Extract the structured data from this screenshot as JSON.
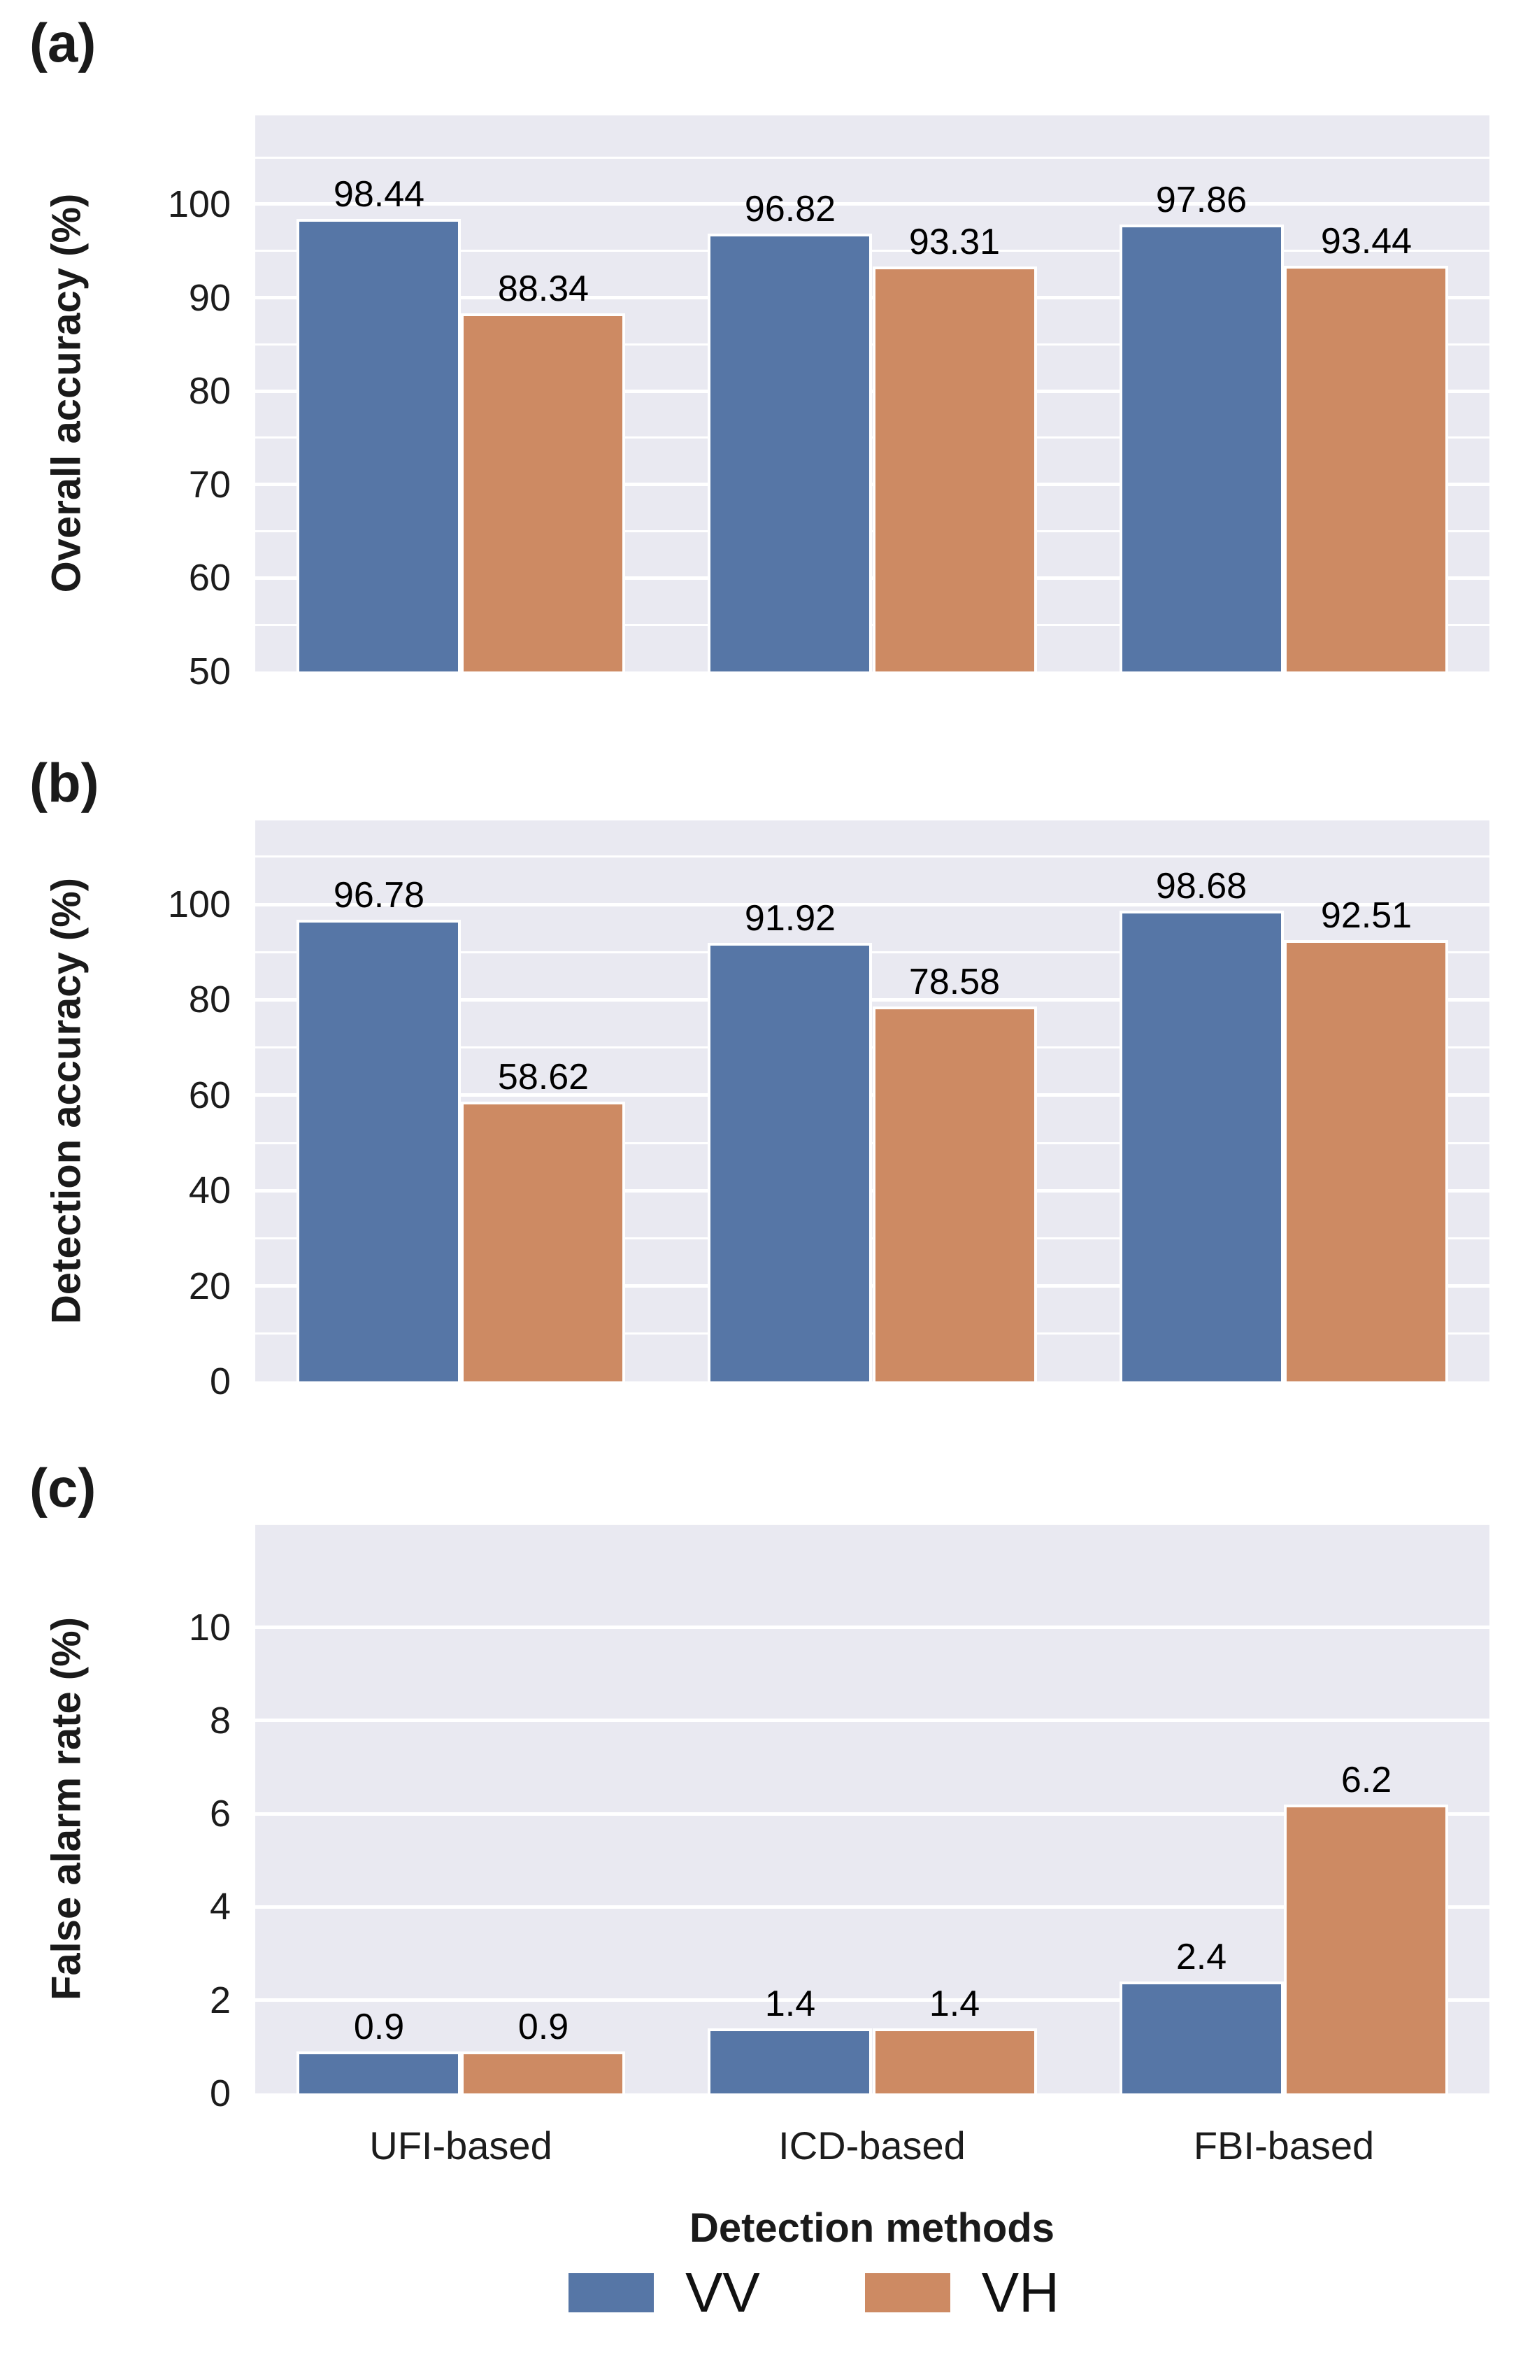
{
  "figure": {
    "panels": [
      {
        "letter": "(a)",
        "ylabel": "Overall accuracy (%)"
      },
      {
        "letter": "(b)",
        "ylabel": "Detection accuracy (%)"
      },
      {
        "letter": "(c)",
        "ylabel": "False alarm rate (%)"
      }
    ],
    "xlabel": "Detection methods",
    "legend": [
      {
        "label": "VV",
        "color": "#5676a6"
      },
      {
        "label": "VH",
        "color": "#cd8a63"
      }
    ]
  },
  "colors": {
    "bar_blue": "#5676a6",
    "bar_orange": "#cd8a63",
    "plot_background": "#e9e9f1",
    "gridline": "#ffffff",
    "text": "#1a1a1a"
  },
  "chart_data": [
    {
      "type": "bar",
      "panel": "(a)",
      "categories": [
        "UFI-based",
        "ICD-based",
        "FBI-based"
      ],
      "series": [
        {
          "name": "VV",
          "values": [
            98.44,
            96.82,
            97.86
          ],
          "labels": [
            "98.44",
            "96.82",
            "97.86"
          ],
          "color": "#5676a6"
        },
        {
          "name": "VH",
          "values": [
            88.34,
            93.31,
            93.44
          ],
          "labels": [
            "88.34",
            "93.31",
            "93.44"
          ],
          "color": "#cd8a63"
        }
      ],
      "title": "",
      "xlabel": "Detection methods",
      "ylabel": "Overall accuracy (%)",
      "ylim": [
        50,
        109.5
      ],
      "yticks": [
        50,
        60,
        70,
        80,
        90,
        100
      ],
      "grid_step": 5,
      "grid": true,
      "legend_position": "bottom-center"
    },
    {
      "type": "bar",
      "panel": "(b)",
      "categories": [
        "UFI-based",
        "ICD-based",
        "FBI-based"
      ],
      "series": [
        {
          "name": "VV",
          "values": [
            96.78,
            91.92,
            98.68
          ],
          "labels": [
            "96.78",
            "91.92",
            "98.68"
          ],
          "color": "#5676a6"
        },
        {
          "name": "VH",
          "values": [
            58.62,
            78.58,
            92.51
          ],
          "labels": [
            "58.62",
            "78.58",
            "92.51"
          ],
          "color": "#cd8a63"
        }
      ],
      "title": "",
      "xlabel": "Detection methods",
      "ylabel": "Detection accuracy (%)",
      "ylim": [
        0,
        117.6
      ],
      "yticks": [
        0,
        20,
        40,
        60,
        80,
        100
      ],
      "grid_step": 10,
      "grid": true,
      "legend_position": "bottom-center"
    },
    {
      "type": "bar",
      "panel": "(c)",
      "categories": [
        "UFI-based",
        "ICD-based",
        "FBI-based"
      ],
      "series": [
        {
          "name": "VV",
          "values": [
            0.9,
            1.4,
            2.4
          ],
          "labels": [
            "0.9",
            "1.4",
            "2.4"
          ],
          "color": "#5676a6"
        },
        {
          "name": "VH",
          "values": [
            0.9,
            1.4,
            6.2
          ],
          "labels": [
            "0.9",
            "1.4",
            "6.2"
          ],
          "color": "#cd8a63"
        }
      ],
      "title": "",
      "xlabel": "Detection methods",
      "ylabel": "False alarm rate (%)",
      "ylim": [
        0,
        12.2
      ],
      "yticks": [
        0,
        2,
        4,
        6,
        8,
        10
      ],
      "grid_step": 2,
      "grid": true,
      "legend_position": "bottom-center"
    }
  ]
}
